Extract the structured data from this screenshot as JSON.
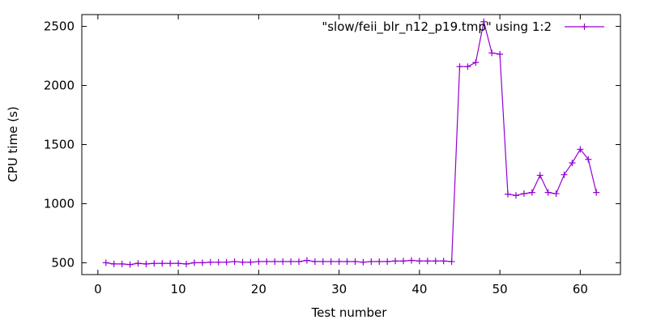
{
  "chart_data": {
    "type": "line",
    "xlabel": "Test number",
    "ylabel": "CPU time (s)",
    "xlim": [
      -2,
      65
    ],
    "ylim": [
      400,
      2600
    ],
    "xticks": [
      0,
      10,
      20,
      30,
      40,
      50,
      60
    ],
    "yticks": [
      500,
      1000,
      1500,
      2000,
      2500
    ],
    "grid": false,
    "legend": "top-right",
    "series": [
      {
        "name": "\"slow/feii_blr_n12_p19.tmp\" using 1:2",
        "color": "#9400d3",
        "marker": "plus",
        "x": [
          1,
          2,
          3,
          4,
          5,
          6,
          7,
          8,
          9,
          10,
          11,
          12,
          13,
          14,
          15,
          16,
          17,
          18,
          19,
          20,
          21,
          22,
          23,
          24,
          25,
          26,
          27,
          28,
          29,
          30,
          31,
          32,
          33,
          34,
          35,
          36,
          37,
          38,
          39,
          40,
          41,
          42,
          43,
          44,
          45,
          46,
          47,
          48,
          49,
          50,
          51,
          52,
          53,
          54,
          55,
          56,
          57,
          58,
          59,
          60,
          61,
          62
        ],
        "y": [
          500,
          490,
          490,
          485,
          495,
          490,
          495,
          495,
          495,
          495,
          490,
          500,
          500,
          505,
          505,
          505,
          510,
          505,
          505,
          510,
          510,
          510,
          510,
          510,
          510,
          520,
          510,
          510,
          510,
          510,
          510,
          510,
          505,
          510,
          510,
          510,
          515,
          515,
          520,
          515,
          515,
          515,
          515,
          510,
          2160,
          2160,
          2195,
          2540,
          2275,
          2265,
          1080,
          1070,
          1085,
          1095,
          1240,
          1095,
          1085,
          1245,
          1345,
          1460,
          1375,
          1095
        ]
      }
    ]
  }
}
